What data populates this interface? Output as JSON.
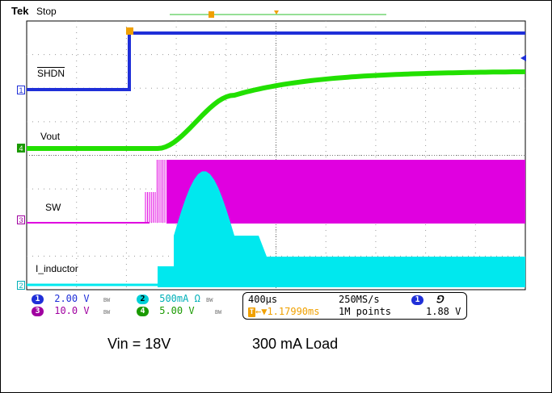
{
  "header": {
    "brand": "Tek",
    "status": "Stop"
  },
  "trigger": {
    "marker": "T",
    "level_marker": "←"
  },
  "traces": {
    "shdn": {
      "label": "SHDN",
      "channel": "1",
      "color": "#1f2fd8"
    },
    "vout": {
      "label": "Vout",
      "channel": "4",
      "color": "#22e000"
    },
    "sw": {
      "label": "SW",
      "channel": "3",
      "color": "#e000e0"
    },
    "inductor": {
      "label": "I_inductor",
      "channel": "2",
      "color": "#00e8ee"
    }
  },
  "readout": {
    "ch1": {
      "num": "1",
      "scale": "2.00 V",
      "bw": "BW",
      "color": "#1f2fd8"
    },
    "ch2": {
      "num": "2",
      "scale": "500mA Ω",
      "bw": "BW",
      "color": "#00d0d8"
    },
    "ch3": {
      "num": "3",
      "scale": "10.0 V",
      "bw": "BW",
      "color": "#a000a0"
    },
    "ch4": {
      "num": "4",
      "scale": "5.00 V",
      "bw": "BW",
      "color": "#1a9a00"
    },
    "timebase": "400µs",
    "sample_rate": "250MS/s",
    "trigger_pos": "▼1.17990ms",
    "record_length": "1M points",
    "trigger_source": "1",
    "trigger_slope": "⅁",
    "trigger_level": "1.88 V"
  },
  "captions": {
    "vin": "Vin = 18V",
    "load": "300 mA Load"
  },
  "colors": {
    "grid": "#9a9a9a",
    "orange": "#f0a000",
    "bg": "#ffffff"
  }
}
